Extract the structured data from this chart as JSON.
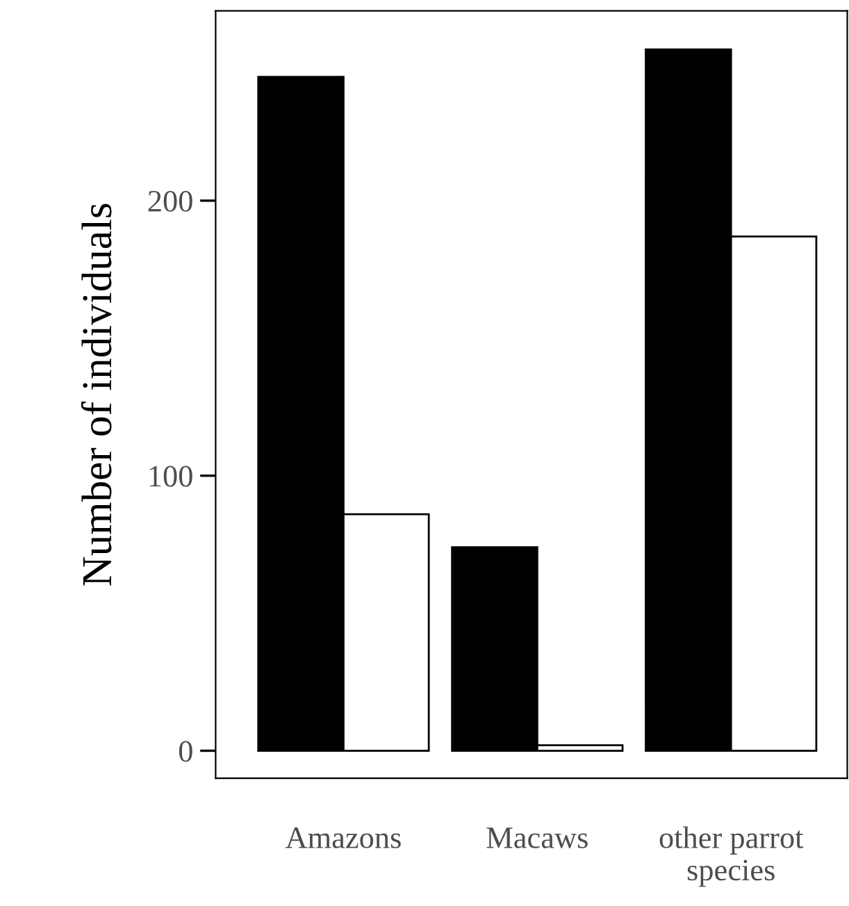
{
  "chart_data": {
    "type": "bar",
    "ylabel": "Number of individuals",
    "categories": [
      "Amazons",
      "Macaws",
      "other parrot\nspecies"
    ],
    "series": [
      {
        "color": "#000000",
        "values": [
          245,
          74,
          255
        ]
      },
      {
        "color": "#ffffff",
        "values": [
          86,
          2,
          187
        ]
      }
    ],
    "ylim": [
      -10,
      269
    ],
    "yticks": [
      0,
      100,
      200
    ],
    "grid": false,
    "legend": false
  }
}
